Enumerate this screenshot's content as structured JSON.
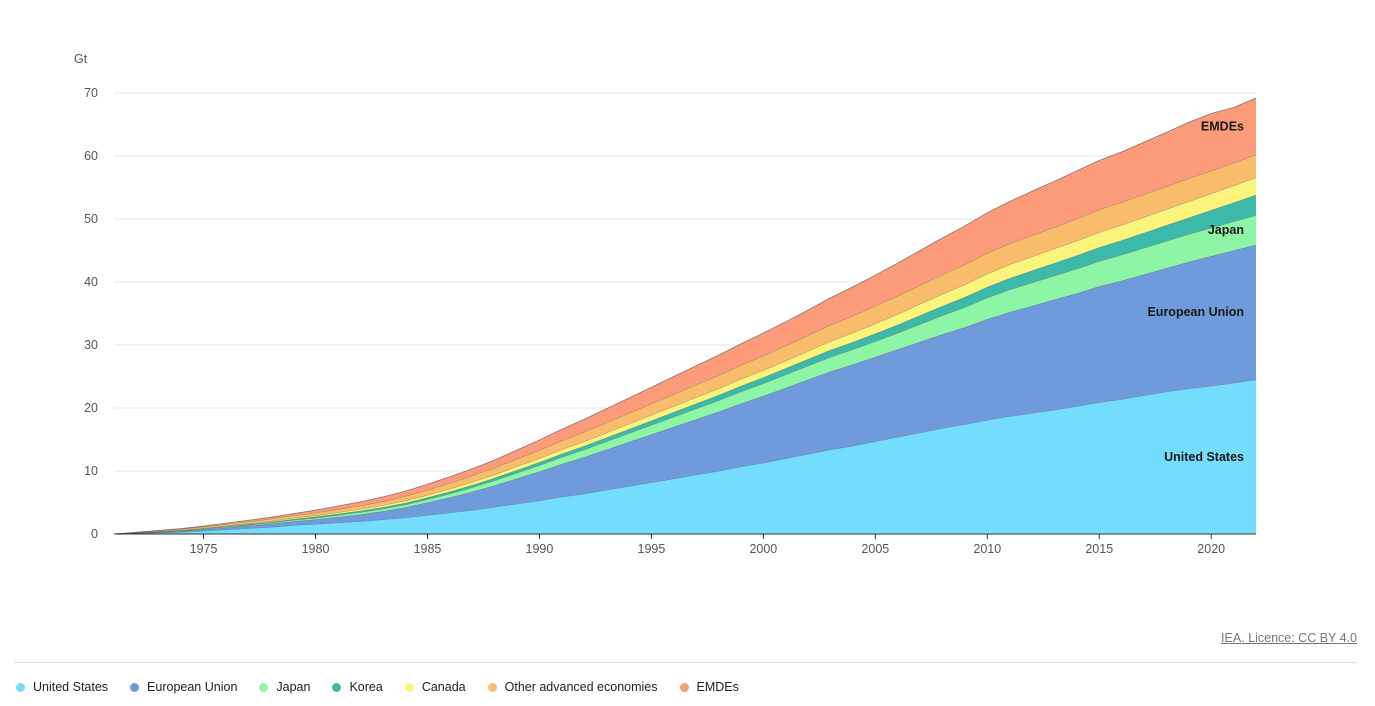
{
  "source": "IEA. Licence: CC BY 4.0",
  "chart_data": {
    "type": "area",
    "stacked": true,
    "ylabel": "Gt",
    "ylim": [
      0,
      70
    ],
    "yticks": [
      0,
      10,
      20,
      30,
      40,
      50,
      60,
      70
    ],
    "xlim": [
      1971,
      2022
    ],
    "xticks": [
      1975,
      1980,
      1985,
      1990,
      1995,
      2000,
      2005,
      2010,
      2015,
      2020
    ],
    "grid": true,
    "legend_position": "bottom",
    "x": [
      1971,
      1972,
      1973,
      1974,
      1975,
      1976,
      1977,
      1978,
      1979,
      1980,
      1981,
      1982,
      1983,
      1984,
      1985,
      1986,
      1987,
      1988,
      1989,
      1990,
      1991,
      1992,
      1993,
      1994,
      1995,
      1996,
      1997,
      1998,
      1999,
      2000,
      2001,
      2002,
      2003,
      2004,
      2005,
      2006,
      2007,
      2008,
      2009,
      2010,
      2011,
      2012,
      2013,
      2014,
      2015,
      2016,
      2017,
      2018,
      2019,
      2020,
      2021,
      2022
    ],
    "series": [
      {
        "name": "United States",
        "color": "#74dcfc",
        "label": "United States",
        "values": [
          0,
          0.1,
          0.2,
          0.3,
          0.5,
          0.7,
          0.9,
          1.1,
          1.4,
          1.6,
          1.8,
          2.0,
          2.3,
          2.6,
          3.0,
          3.4,
          3.8,
          4.3,
          4.8,
          5.3,
          5.9,
          6.4,
          7.0,
          7.6,
          8.2,
          8.8,
          9.4,
          10.0,
          10.7,
          11.3,
          12.0,
          12.7,
          13.4,
          14.0,
          14.7,
          15.4,
          16.1,
          16.8,
          17.4,
          18.1,
          18.7,
          19.2,
          19.7,
          20.3,
          20.9,
          21.4,
          22.0,
          22.6,
          23.1,
          23.5,
          24.0,
          24.5
        ]
      },
      {
        "name": "European Union",
        "color": "#6f9bdc",
        "label": "European Union",
        "values": [
          0,
          0.05,
          0.1,
          0.15,
          0.2,
          0.3,
          0.4,
          0.5,
          0.6,
          0.7,
          0.9,
          1.1,
          1.3,
          1.6,
          2.0,
          2.4,
          2.9,
          3.4,
          4.0,
          4.6,
          5.2,
          5.8,
          6.4,
          7.0,
          7.6,
          8.2,
          8.8,
          9.4,
          10.0,
          10.6,
          11.2,
          11.8,
          12.4,
          12.9,
          13.4,
          13.9,
          14.4,
          14.9,
          15.4,
          16.0,
          16.5,
          17.0,
          17.5,
          17.9,
          18.4,
          18.8,
          19.2,
          19.6,
          20.1,
          20.6,
          21.0,
          21.4
        ]
      },
      {
        "name": "Japan",
        "color": "#8ef5a6",
        "label": "Japan",
        "values": [
          0,
          0.02,
          0.04,
          0.06,
          0.1,
          0.12,
          0.14,
          0.16,
          0.2,
          0.25,
          0.3,
          0.35,
          0.4,
          0.45,
          0.5,
          0.6,
          0.7,
          0.8,
          0.9,
          1.0,
          1.1,
          1.2,
          1.3,
          1.4,
          1.5,
          1.6,
          1.7,
          1.8,
          1.9,
          2.0,
          2.1,
          2.2,
          2.3,
          2.4,
          2.5,
          2.6,
          2.8,
          3.0,
          3.2,
          3.4,
          3.6,
          3.7,
          3.8,
          3.9,
          4.0,
          4.1,
          4.2,
          4.3,
          4.4,
          4.5,
          4.6,
          4.7
        ]
      },
      {
        "name": "Korea",
        "color": "#3db9a9",
        "label": "",
        "values": [
          0,
          0.02,
          0.04,
          0.06,
          0.08,
          0.1,
          0.12,
          0.14,
          0.16,
          0.18,
          0.2,
          0.22,
          0.25,
          0.28,
          0.3,
          0.33,
          0.36,
          0.4,
          0.44,
          0.48,
          0.52,
          0.56,
          0.6,
          0.64,
          0.7,
          0.75,
          0.8,
          0.85,
          0.9,
          0.95,
          1.0,
          1.05,
          1.1,
          1.15,
          1.2,
          1.3,
          1.4,
          1.5,
          1.6,
          1.7,
          1.8,
          1.9,
          2.0,
          2.1,
          2.2,
          2.3,
          2.4,
          2.5,
          2.6,
          2.8,
          3.0,
          3.2
        ]
      },
      {
        "name": "Canada",
        "color": "#fbf47c",
        "label": "",
        "values": [
          0,
          0.02,
          0.04,
          0.06,
          0.08,
          0.1,
          0.12,
          0.15,
          0.18,
          0.2,
          0.24,
          0.28,
          0.32,
          0.36,
          0.4,
          0.45,
          0.5,
          0.55,
          0.6,
          0.65,
          0.7,
          0.75,
          0.8,
          0.85,
          0.9,
          0.95,
          1.0,
          1.05,
          1.1,
          1.15,
          1.2,
          1.3,
          1.4,
          1.5,
          1.6,
          1.7,
          1.8,
          1.9,
          2.0,
          2.1,
          2.2,
          2.25,
          2.3,
          2.35,
          2.4,
          2.45,
          2.5,
          2.55,
          2.6,
          2.65,
          2.7,
          2.8
        ]
      },
      {
        "name": "Other advanced economies",
        "color": "#f9bc6c",
        "label": "",
        "values": [
          0,
          0.05,
          0.1,
          0.15,
          0.2,
          0.25,
          0.3,
          0.35,
          0.4,
          0.45,
          0.5,
          0.55,
          0.6,
          0.7,
          0.8,
          0.9,
          1.0,
          1.1,
          1.2,
          1.3,
          1.4,
          1.5,
          1.6,
          1.7,
          1.8,
          1.9,
          2.0,
          2.1,
          2.2,
          2.3,
          2.4,
          2.5,
          2.6,
          2.7,
          2.8,
          2.9,
          3.0,
          3.1,
          3.2,
          3.3,
          3.3,
          3.35,
          3.4,
          3.5,
          3.6,
          3.6,
          3.6,
          3.6,
          3.65,
          3.6,
          3.6,
          3.6
        ]
      },
      {
        "name": "EMDEs",
        "color": "#fb9b7a",
        "label": "EMDEs",
        "values": [
          0,
          0.02,
          0.05,
          0.08,
          0.1,
          0.15,
          0.2,
          0.25,
          0.3,
          0.4,
          0.5,
          0.6,
          0.7,
          0.8,
          0.9,
          1.0,
          1.1,
          1.2,
          1.4,
          1.6,
          1.8,
          2.0,
          2.2,
          2.4,
          2.6,
          2.8,
          3.0,
          3.2,
          3.4,
          3.6,
          3.8,
          4.0,
          4.3,
          4.6,
          4.9,
          5.2,
          5.5,
          5.8,
          6.1,
          6.4,
          6.7,
          7.0,
          7.3,
          7.6,
          7.8,
          8.0,
          8.3,
          8.6,
          8.9,
          9.1,
          8.8,
          9.0
        ]
      }
    ]
  }
}
